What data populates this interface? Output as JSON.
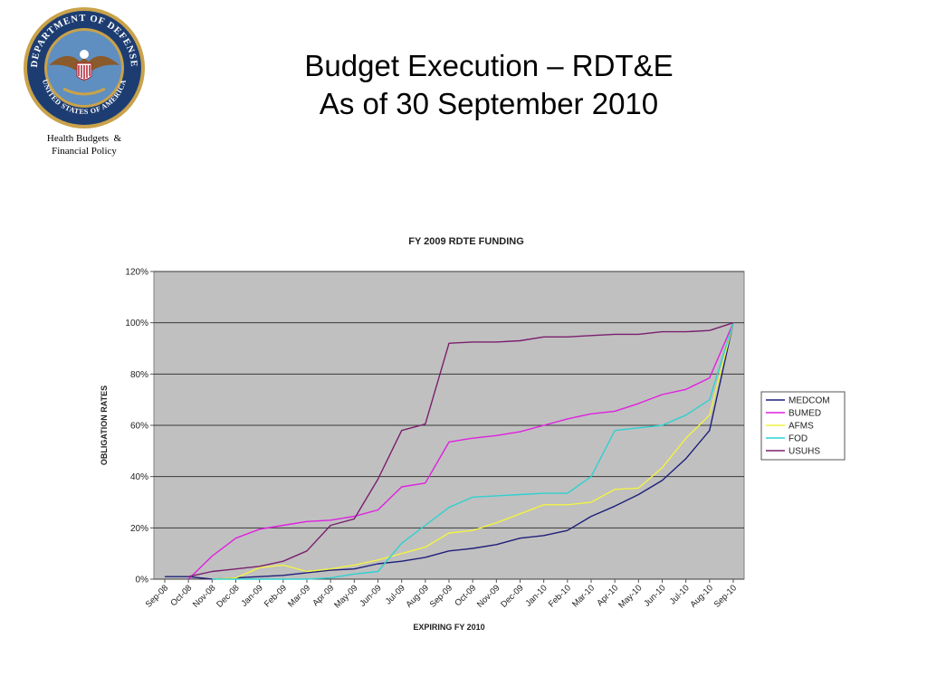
{
  "slide": {
    "title_line1": "Budget Execution – RDT&E",
    "title_line2": "As of 30 September 2010",
    "org_line1": "Health Budgets  &",
    "org_line2": "Financial Policy",
    "seal_text": "DEPARTMENT OF DEFENSE · UNITED STATES OF AMERICA"
  },
  "chart_data": {
    "type": "line",
    "title": "FY 2009 RDTE FUNDING",
    "xlabel": "EXPIRING FY 2010",
    "ylabel": "OBLIGATION RATES",
    "categories": [
      "Sep-08",
      "Oct-08",
      "Nov-08",
      "Dec-08",
      "Jan-09",
      "Feb-09",
      "Mar-09",
      "Apr-09",
      "May-09",
      "Jun-09",
      "Jul-09",
      "Aug-09",
      "Sep-09",
      "Oct-09",
      "Nov-09",
      "Dec-09",
      "Jan-10",
      "Feb-10",
      "Mar-10",
      "Apr-10",
      "May-10",
      "Jun-10",
      "Jul-10",
      "Aug-10",
      "Sep-10"
    ],
    "ylim": [
      0,
      120
    ],
    "yticks": [
      "0%",
      "20%",
      "40%",
      "60%",
      "80%",
      "100%",
      "120%"
    ],
    "grid": true,
    "legend": "right",
    "background": "#c0c0c0",
    "series": [
      {
        "name": "MEDCOM",
        "color": "#1f1f7a",
        "values": [
          1,
          1,
          0,
          0.5,
          1,
          1.5,
          2.5,
          3.5,
          4,
          6,
          7,
          8.5,
          11,
          12,
          13.5,
          16,
          17,
          19,
          24.5,
          28.5,
          33,
          38.5,
          47,
          58,
          100
        ]
      },
      {
        "name": "BUMED",
        "color": "#e020e0",
        "values": [
          null,
          0,
          9,
          16,
          19.5,
          21,
          22.5,
          23,
          24.5,
          27,
          36,
          37.5,
          53.5,
          55,
          56,
          57.5,
          60,
          62.5,
          64.5,
          65.5,
          68.5,
          72,
          74,
          78.5,
          100
        ]
      },
      {
        "name": "AFMS",
        "color": "#f2f244",
        "values": [
          null,
          null,
          0,
          0.5,
          4.5,
          5.5,
          3,
          4,
          5.5,
          7.5,
          10,
          12.5,
          18,
          19,
          22,
          25.5,
          29,
          29,
          30,
          35,
          35.5,
          43.5,
          55,
          64,
          100
        ]
      },
      {
        "name": "FOD",
        "color": "#30d0d0",
        "values": [
          null,
          null,
          0,
          0,
          0,
          0,
          0,
          0.5,
          2,
          3,
          14,
          21,
          28,
          32,
          32.5,
          33,
          33.5,
          33.5,
          40,
          58,
          59,
          60,
          64,
          70,
          100
        ]
      },
      {
        "name": "USUHS",
        "color": "#7a1f6e",
        "values": [
          null,
          1,
          3,
          4,
          5,
          7,
          11,
          21,
          23.5,
          39,
          58,
          60.5,
          92,
          92.5,
          92.5,
          93,
          94.5,
          94.5,
          95,
          95.5,
          95.5,
          96.5,
          96.5,
          97,
          100
        ]
      }
    ]
  }
}
